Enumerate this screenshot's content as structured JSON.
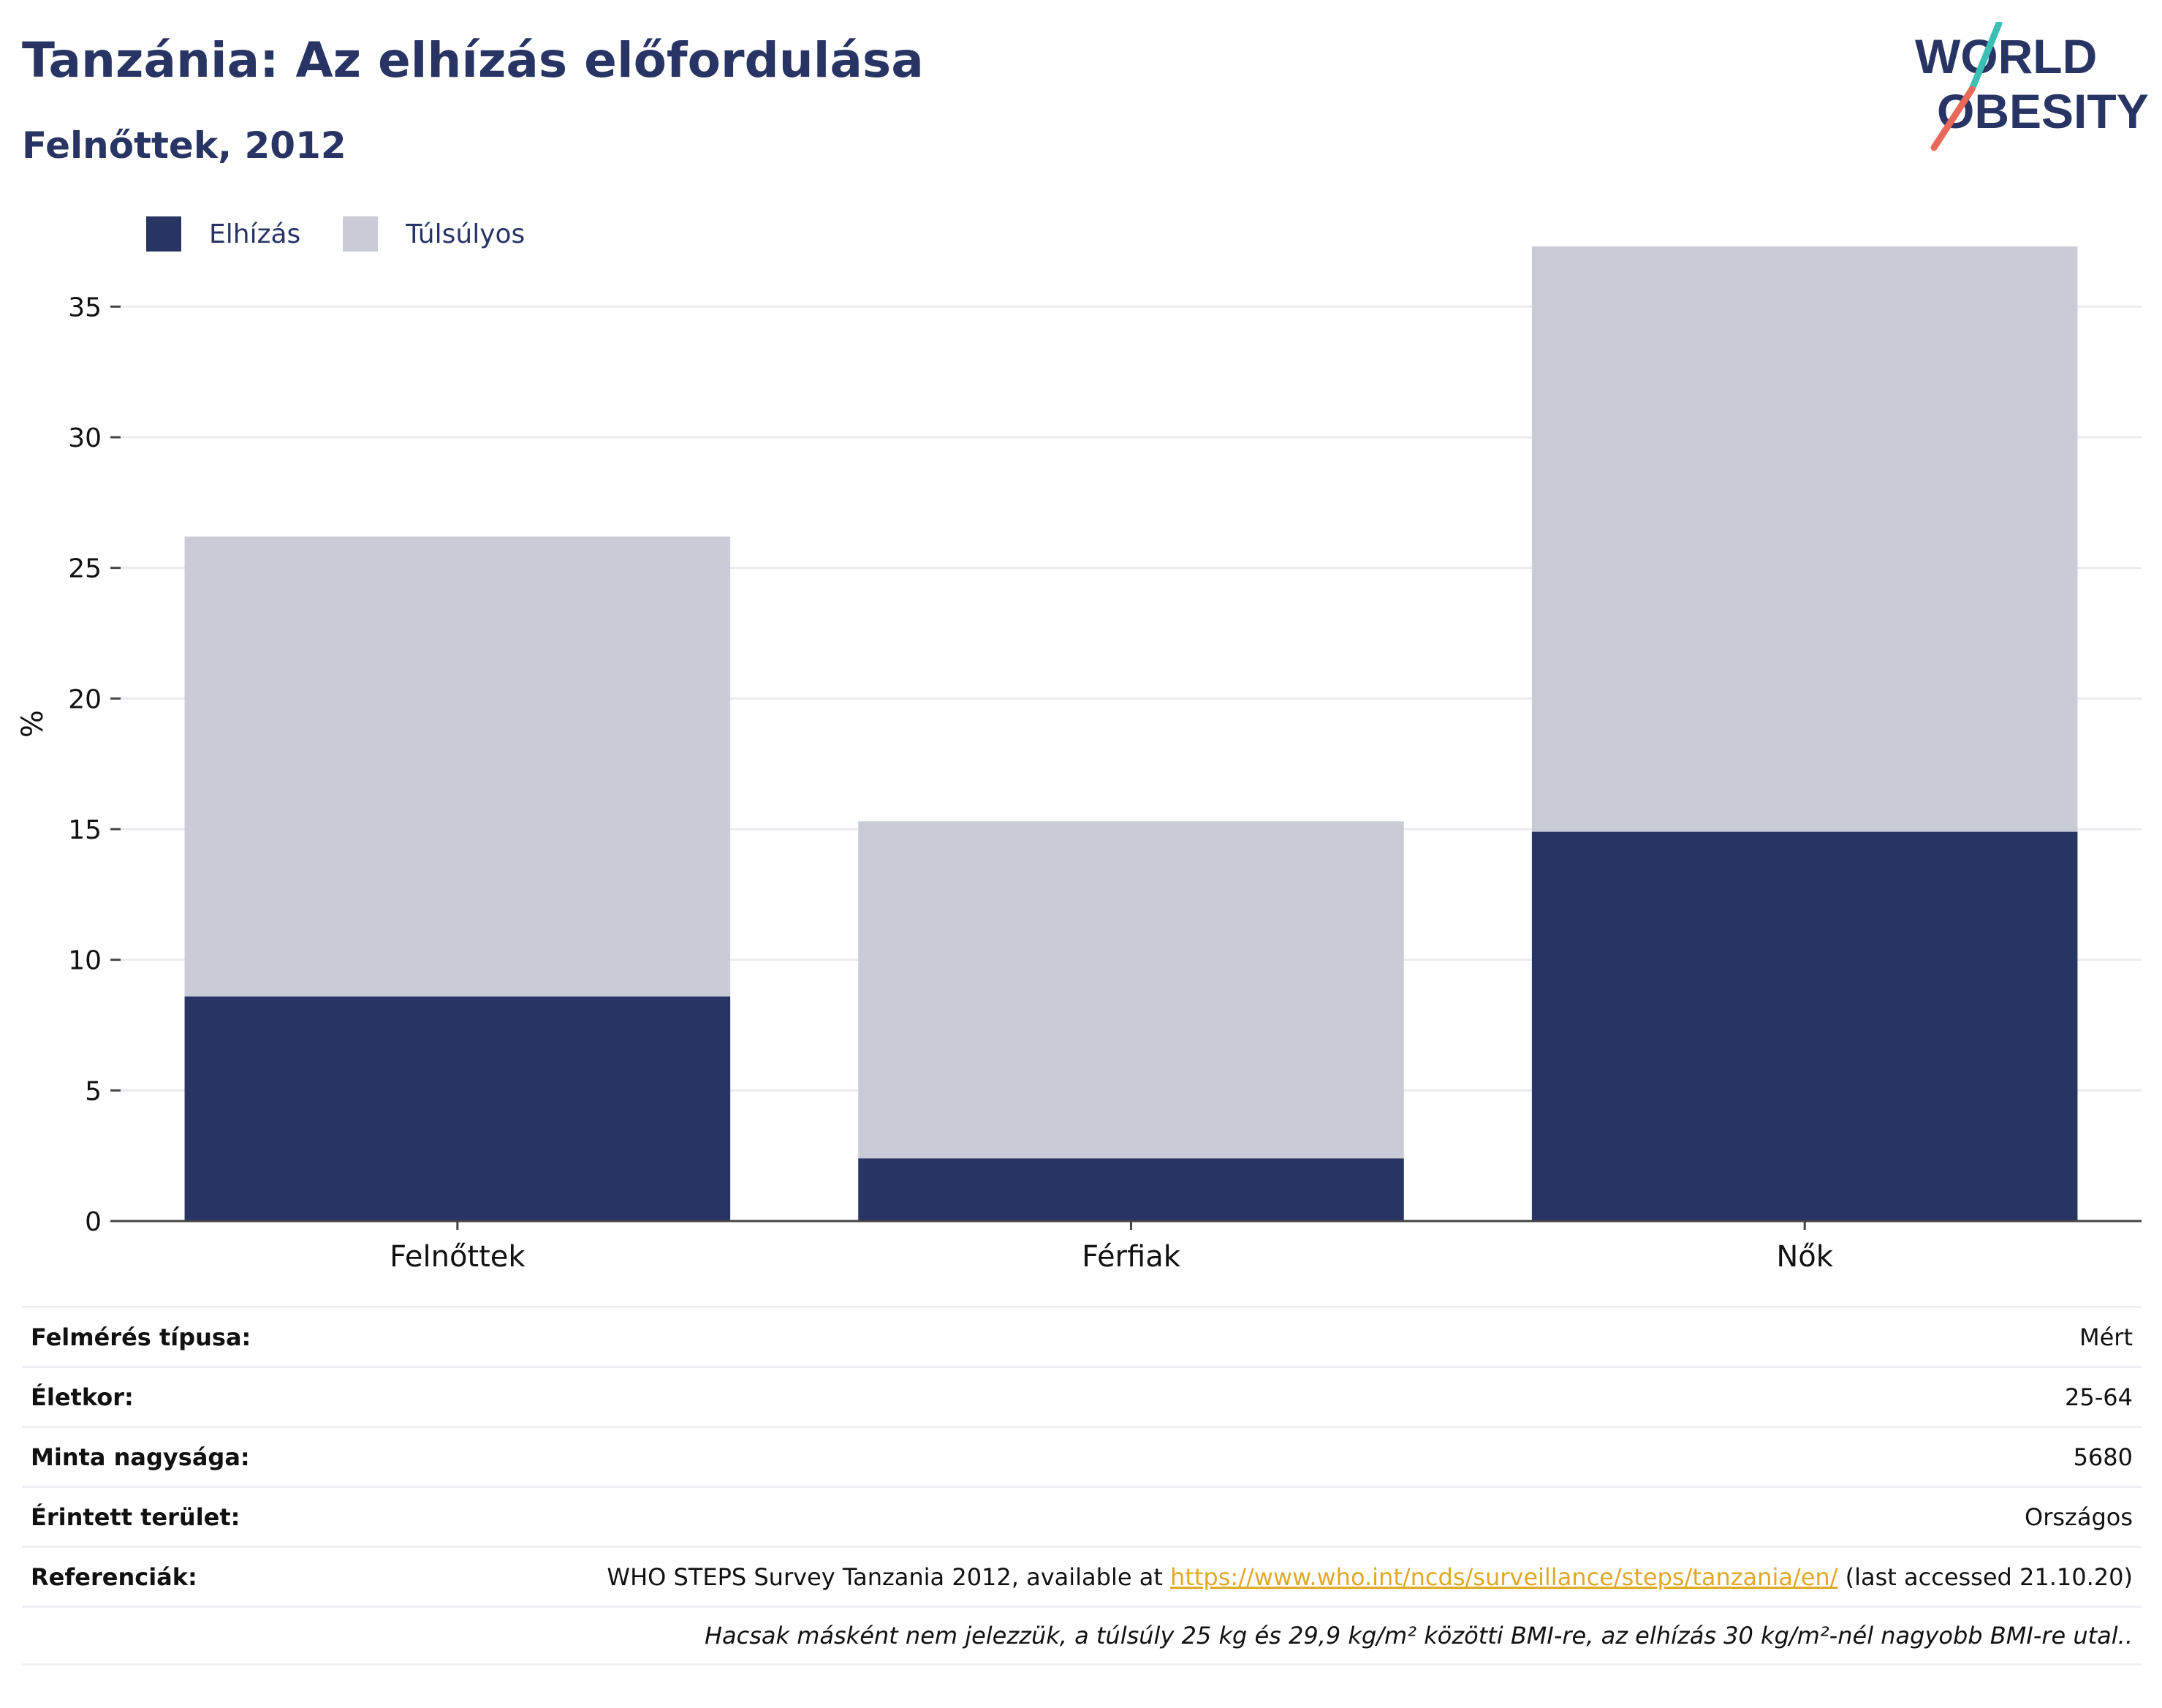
{
  "header": {
    "title": "Tanzánia: Az elhízás előfordulása",
    "subtitle": "Felnőttek, 2012"
  },
  "logo": {
    "line1": "WORLD",
    "line2": "OBESITY",
    "colors": {
      "text": "#283564",
      "slash_top": "#3bbfb5",
      "slash_bottom": "#e8685a"
    }
  },
  "chart_data": {
    "type": "bar",
    "stacked": true,
    "categories": [
      "Felnőttek",
      "Férfiak",
      "Nők"
    ],
    "series": [
      {
        "name": "Elhízás",
        "values": [
          8.6,
          2.4,
          14.9
        ],
        "color": "#283564"
      },
      {
        "name": "Túlsúlyos",
        "values": [
          17.6,
          12.9,
          22.4
        ],
        "color": "#c9cbd6"
      }
    ],
    "title": "",
    "xlabel": "",
    "ylabel": "%",
    "ylim": [
      0,
      37.5
    ],
    "yticks": [
      0,
      5,
      10,
      15,
      20,
      25,
      30,
      35
    ],
    "grid": true,
    "legend": "top-left"
  },
  "meta": {
    "rows": [
      {
        "label": "Felmérés típusa:",
        "value": "Mért"
      },
      {
        "label": "Életkor:",
        "value": "25-64"
      },
      {
        "label": "Minta nagysága:",
        "value": "5680"
      },
      {
        "label": "Érintett terület:",
        "value": "Országos"
      }
    ],
    "reference": {
      "label": "Referenciák:",
      "prefix": "WHO STEPS Survey Tanzania 2012, available at ",
      "link": "https://www.who.int/ncds/surveillance/steps/tanzania/en/",
      "suffix": " (last accessed 21.10.20)"
    },
    "note": "Hacsak másként nem jelezzük, a túlsúly 25 kg és 29,9 kg/m² közötti BMI-re, az elhízás 30 kg/m²-nél nagyobb BMI-re utal.."
  }
}
